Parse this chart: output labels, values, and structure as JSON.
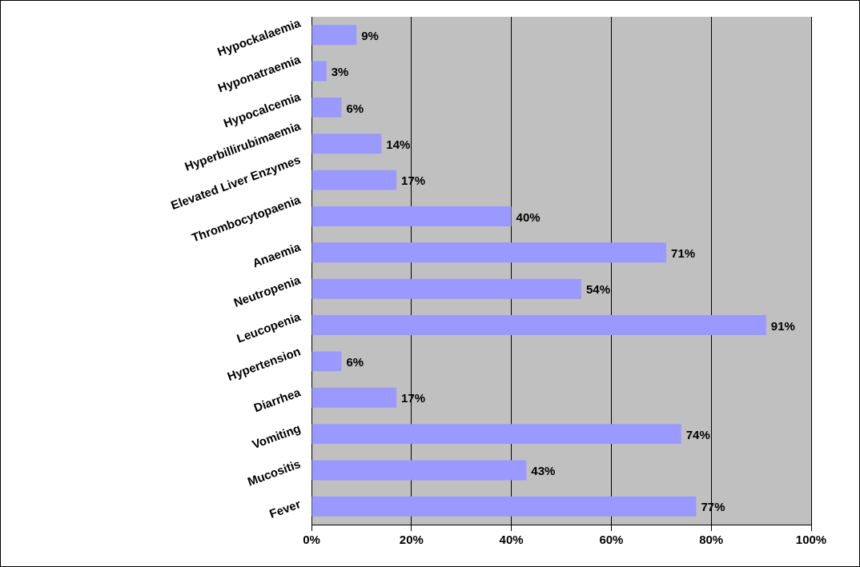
{
  "chart_data": {
    "type": "bar",
    "orientation": "horizontal",
    "categories": [
      "Hypockalaemia",
      "Hyponatraemia",
      "Hypocalcemia",
      "Hyperbillirubimaemia",
      "Elevated Liver Enzymes",
      "Thrombocytopaenia",
      "Anaemia",
      "Neutropenia",
      "Leucopenia",
      "Hypertension",
      "Diarrhea",
      "Vomiting",
      "Mucositis",
      "Fever"
    ],
    "values": [
      9,
      3,
      6,
      14,
      17,
      40,
      71,
      54,
      91,
      6,
      17,
      74,
      43,
      77
    ],
    "value_labels": [
      "9%",
      "3%",
      "6%",
      "14%",
      "17%",
      "40%",
      "71%",
      "54%",
      "91%",
      "6%",
      "17%",
      "74%",
      "43%",
      "77%"
    ],
    "color": "#9999ff",
    "xlim": [
      0,
      100
    ],
    "xticks": [
      {
        "value": 0,
        "label": "0%"
      },
      {
        "value": 20,
        "label": "20%"
      },
      {
        "value": 40,
        "label": "40%"
      },
      {
        "value": 60,
        "label": "60%"
      },
      {
        "value": 80,
        "label": "80%"
      },
      {
        "value": 100,
        "label": "100%"
      }
    ],
    "grid": "x",
    "legend": false
  }
}
